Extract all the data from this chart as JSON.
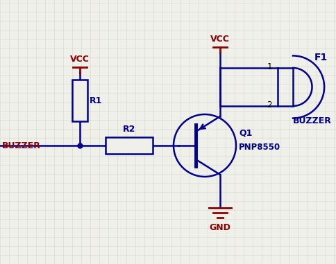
{
  "bg_color": "#f0f0eb",
  "grid_color": "#d8d8d0",
  "wire_color": "#00008B",
  "component_color": "#00008B",
  "label_color": "#8B0000",
  "black": "#000000",
  "vcc_label": "VCC",
  "gnd_label": "GND",
  "r1_label": "R1",
  "r2_label": "R2",
  "q1_label": "Q1",
  "q1_type": "PNP8550",
  "buzzer_comp": "BUZZER",
  "f1_label": "F1",
  "input_label": "BUZZER"
}
